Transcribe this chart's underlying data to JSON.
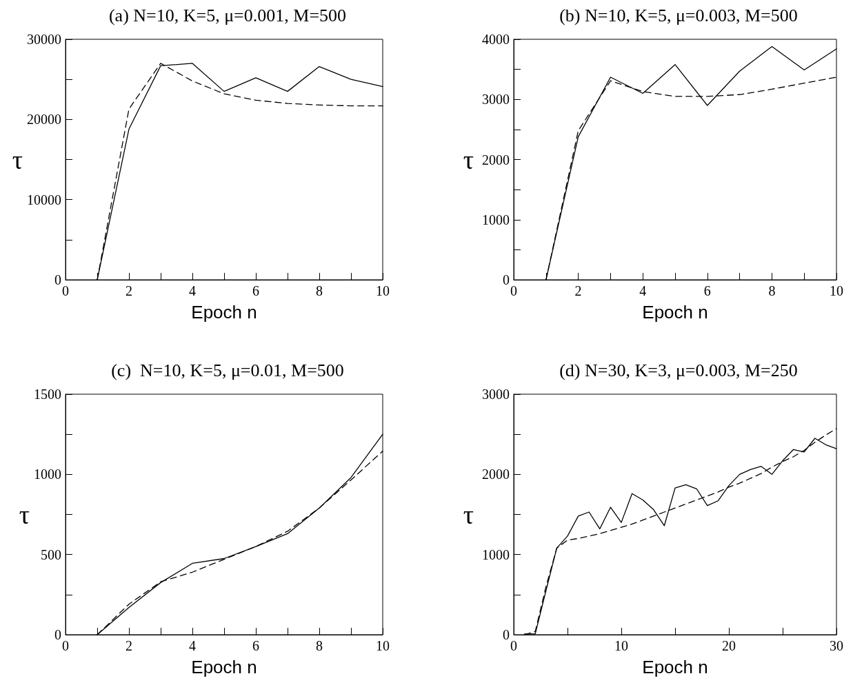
{
  "chart_data": [
    {
      "type": "line",
      "title": "(a) N=10, K=5, μ=0.001, M=500",
      "xlabel": "Epoch n",
      "ylabel": "τ",
      "xlim": [
        0,
        10
      ],
      "xticks": [
        0,
        {
          "value": 1,
          "label": null
        },
        2,
        {
          "value": 3,
          "label": null
        },
        4,
        {
          "value": 5,
          "label": null
        },
        6,
        {
          "value": 7,
          "label": null
        },
        8,
        {
          "value": 9,
          "label": null
        },
        10
      ],
      "ylim": [
        0,
        30000
      ],
      "yticks": [
        0,
        {
          "value": 5000,
          "label": null
        },
        10000,
        {
          "value": 15000,
          "label": null
        },
        20000,
        {
          "value": 25000,
          "label": null
        },
        30000
      ],
      "marker": "none",
      "series": [
        {
          "color": "#000000",
          "line_style": "solid",
          "x": [
            1,
            2,
            3,
            4,
            5,
            6,
            7,
            8,
            9,
            10
          ],
          "values": [
            0,
            18800,
            26700,
            27000,
            23500,
            25200,
            23500,
            26600,
            25000,
            24100
          ]
        },
        {
          "color": "#000000",
          "line_style": "dashed",
          "x": [
            1,
            2,
            3,
            4,
            5,
            6,
            7,
            8,
            9,
            10
          ],
          "values": [
            0,
            21300,
            27000,
            24800,
            23200,
            22400,
            22000,
            21800,
            21700,
            21700
          ]
        }
      ]
    },
    {
      "type": "line",
      "title": "(b) N=10, K=5, μ=0.003, M=500",
      "xlabel": "Epoch n",
      "ylabel": "τ",
      "xlim": [
        0,
        10
      ],
      "xticks": [
        0,
        {
          "value": 1,
          "label": null
        },
        2,
        {
          "value": 3,
          "label": null
        },
        4,
        {
          "value": 5,
          "label": null
        },
        6,
        {
          "value": 7,
          "label": null
        },
        8,
        {
          "value": 9,
          "label": null
        },
        10
      ],
      "ylim": [
        0,
        4000
      ],
      "yticks": [
        0,
        {
          "value": 500,
          "label": null
        },
        1000,
        {
          "value": 1500,
          "label": null
        },
        2000,
        {
          "value": 2500,
          "label": null
        },
        3000,
        {
          "value": 3500,
          "label": null
        },
        4000
      ],
      "marker": "none",
      "series": [
        {
          "color": "#000000",
          "line_style": "solid",
          "x": [
            1,
            2,
            3,
            4,
            5,
            6,
            7,
            8,
            9,
            10
          ],
          "values": [
            0,
            2380,
            3370,
            3100,
            3580,
            2900,
            3470,
            3880,
            3490,
            3840
          ]
        },
        {
          "color": "#000000",
          "line_style": "dashed",
          "x": [
            1,
            2,
            3,
            4,
            5,
            6,
            7,
            8,
            9,
            10
          ],
          "values": [
            0,
            2480,
            3310,
            3130,
            3050,
            3050,
            3080,
            3170,
            3270,
            3370
          ]
        }
      ]
    },
    {
      "type": "line",
      "title": "(c)  N=10, K=5, μ=0.01, M=500",
      "xlabel": "Epoch n",
      "ylabel": "τ",
      "xlim": [
        0,
        10
      ],
      "xticks": [
        0,
        {
          "value": 1,
          "label": null
        },
        2,
        {
          "value": 3,
          "label": null
        },
        4,
        {
          "value": 5,
          "label": null
        },
        6,
        {
          "value": 7,
          "label": null
        },
        8,
        {
          "value": 9,
          "label": null
        },
        10
      ],
      "ylim": [
        0,
        1500
      ],
      "yticks": [
        0,
        {
          "value": 250,
          "label": null
        },
        500,
        {
          "value": 750,
          "label": null
        },
        1000,
        {
          "value": 1250,
          "label": null
        },
        1500
      ],
      "marker": "none",
      "series": [
        {
          "color": "#000000",
          "line_style": "solid",
          "x": [
            1,
            2,
            3,
            4,
            5,
            6,
            7,
            8,
            9,
            10
          ],
          "values": [
            0,
            170,
            325,
            445,
            475,
            550,
            630,
            790,
            980,
            1250
          ]
        },
        {
          "color": "#000000",
          "line_style": "dashed",
          "x": [
            1,
            2,
            3,
            4,
            5,
            6,
            7,
            8,
            9,
            10
          ],
          "values": [
            0,
            190,
            330,
            390,
            470,
            550,
            645,
            790,
            965,
            1145
          ]
        }
      ]
    },
    {
      "type": "line",
      "title": "(d) N=30, K=3, μ=0.003, M=250",
      "xlabel": "Epoch n",
      "ylabel": "τ",
      "xlim": [
        0,
        30
      ],
      "xticks": [
        0,
        {
          "value": 5,
          "label": null
        },
        10,
        {
          "value": 15,
          "label": null
        },
        20,
        {
          "value": 25,
          "label": null
        },
        30
      ],
      "ylim": [
        0,
        3000
      ],
      "yticks": [
        0,
        {
          "value": 500,
          "label": null
        },
        1000,
        {
          "value": 1500,
          "label": null
        },
        2000,
        {
          "value": 2500,
          "label": null
        },
        3000
      ],
      "marker": "none",
      "series": [
        {
          "color": "#000000",
          "line_style": "solid",
          "x": [
            1,
            2,
            3,
            4,
            5,
            6,
            7,
            8,
            9,
            10,
            11,
            12,
            13,
            14,
            15,
            16,
            17,
            18,
            19,
            20,
            21,
            22,
            23,
            24,
            25,
            26,
            27,
            28,
            29,
            30
          ],
          "values": [
            10,
            10,
            550,
            1080,
            1230,
            1480,
            1530,
            1320,
            1590,
            1400,
            1760,
            1680,
            1560,
            1360,
            1830,
            1870,
            1820,
            1610,
            1670,
            1860,
            2000,
            2060,
            2100,
            2000,
            2170,
            2310,
            2280,
            2450,
            2370,
            2320
          ]
        },
        {
          "color": "#000000",
          "line_style": "dashed",
          "x": [
            1,
            2,
            3,
            4,
            5,
            6,
            7,
            8,
            9,
            10,
            11,
            12,
            13,
            14,
            15,
            16,
            17,
            18,
            19,
            20,
            21,
            22,
            23,
            24,
            25,
            26,
            27,
            28,
            29,
            30
          ],
          "values": [
            0,
            40,
            600,
            1080,
            1180,
            1200,
            1230,
            1260,
            1300,
            1340,
            1380,
            1430,
            1480,
            1530,
            1580,
            1630,
            1680,
            1730,
            1780,
            1840,
            1890,
            1950,
            2010,
            2090,
            2160,
            2220,
            2300,
            2400,
            2490,
            2570
          ]
        }
      ]
    }
  ]
}
